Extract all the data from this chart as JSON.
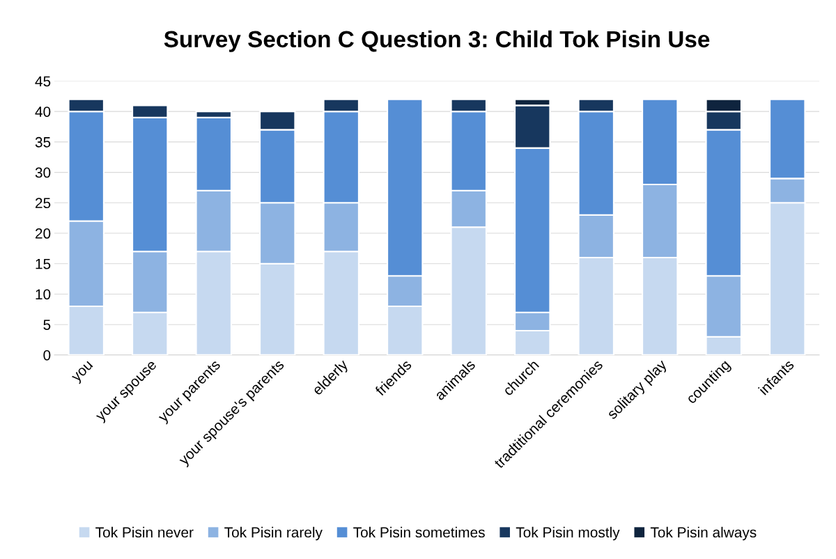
{
  "chart_data": {
    "type": "bar",
    "title": "Survey Section C Question 3: Child Tok Pisin Use",
    "categories": [
      "you",
      "your spouse",
      "your parents",
      "your spouse's parents",
      "elderly",
      "friends",
      "animals",
      "church",
      "tradtitional ceremonies",
      "solitary play",
      "counting",
      "infants"
    ],
    "stacked": true,
    "series": [
      {
        "name": "Tok Pisin never",
        "color": "#c6d9f0",
        "values": [
          8,
          7,
          17,
          15,
          17,
          8,
          21,
          4,
          16,
          16,
          3,
          25
        ]
      },
      {
        "name": "Tok Pisin rarely",
        "color": "#8db3e2",
        "values": [
          14,
          10,
          10,
          10,
          8,
          5,
          6,
          3,
          7,
          12,
          10,
          4
        ]
      },
      {
        "name": "Tok Pisin sometimes",
        "color": "#558ed5",
        "values": [
          18,
          22,
          12,
          12,
          15,
          29,
          13,
          27,
          17,
          14,
          24,
          13
        ]
      },
      {
        "name": "Tok Pisin mostly",
        "color": "#17375e",
        "values": [
          2,
          2,
          1,
          3,
          2,
          0,
          2,
          7,
          2,
          0,
          3,
          0
        ]
      },
      {
        "name": "Tok Pisin always",
        "color": "#0f243e",
        "values": [
          0,
          0,
          0,
          0,
          0,
          0,
          0,
          1,
          0,
          0,
          2,
          0
        ]
      }
    ],
    "ylim": [
      0,
      45
    ],
    "yticks": [
      0,
      5,
      10,
      15,
      20,
      25,
      30,
      35,
      40,
      45
    ],
    "grid": "y",
    "legend": "bottom"
  }
}
